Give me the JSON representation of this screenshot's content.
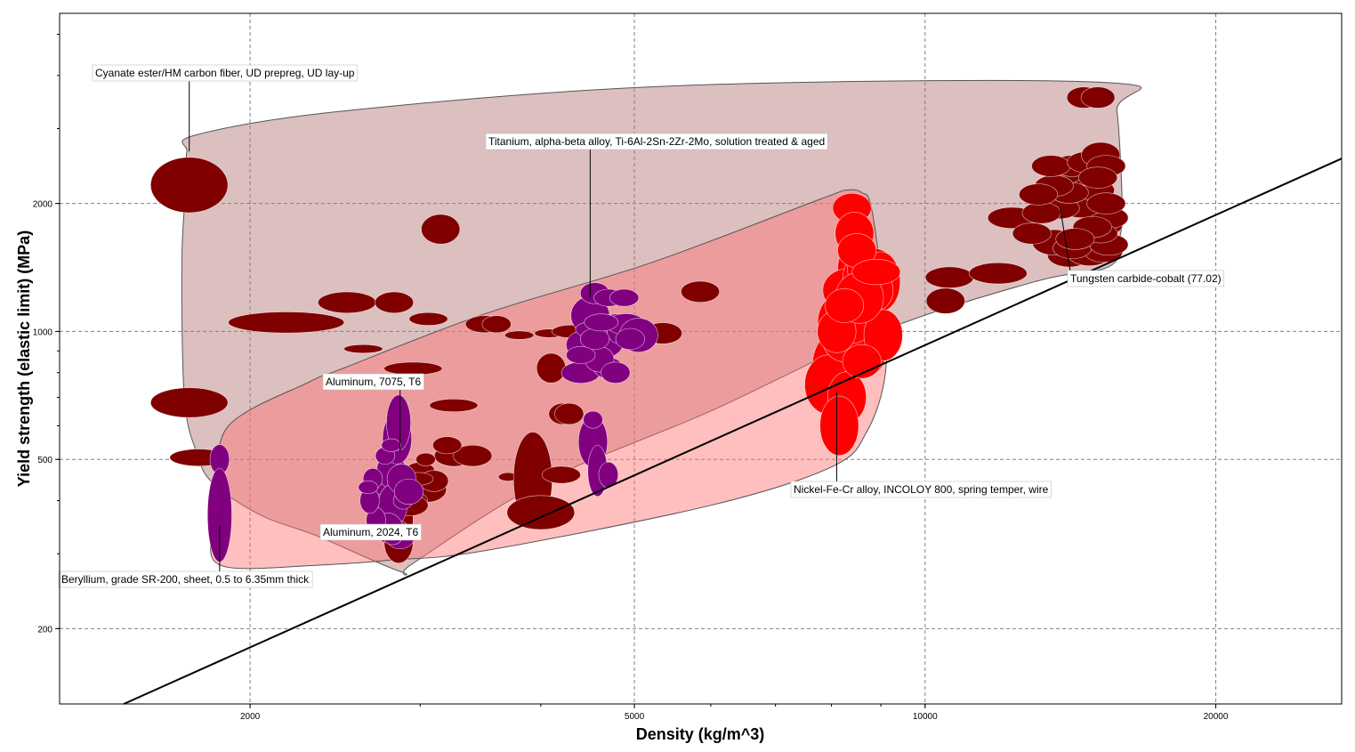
{
  "chart_data": {
    "type": "scatter",
    "title": "",
    "xlabel": "Density (kg/m^3)",
    "ylabel": "Yield strength (elastic limit) (MPa)",
    "xscale": "log",
    "yscale": "log",
    "xlim": [
      1270,
      27000
    ],
    "ylim": [
      133,
      5600
    ],
    "grid": true,
    "x_ticks": [
      {
        "value": 2000,
        "label": "2000"
      },
      {
        "value": 5000,
        "label": "5000"
      },
      {
        "value": 10000,
        "label": "10000"
      },
      {
        "value": 20000,
        "label": "20000"
      }
    ],
    "y_ticks": [
      {
        "value": 200,
        "label": "200"
      },
      {
        "value": 500,
        "label": "500"
      },
      {
        "value": 1000,
        "label": "1000"
      },
      {
        "value": 2000,
        "label": "2000"
      }
    ],
    "colors": {
      "all_materials": "#800000",
      "selected_a": "#800080",
      "selected_b": "#ff0000",
      "envelope_all": "#c08080",
      "envelope_red": "#ff8080",
      "line": "#000000",
      "grid": "#808080"
    },
    "envelopes": [
      {
        "color": "#b27272",
        "opacity": 0.45,
        "points": [
          [
            1720,
            2650
          ],
          [
            1720,
            2300
          ],
          [
            1700,
            1500
          ],
          [
            1710,
            700
          ],
          [
            1760,
            520
          ],
          [
            1830,
            440
          ],
          [
            2050,
            370
          ],
          [
            2350,
            330
          ],
          [
            2870,
            272
          ],
          [
            2950,
            285
          ],
          [
            4000,
            440
          ],
          [
            6000,
            650
          ],
          [
            9000,
            1000
          ],
          [
            13000,
            1310
          ],
          [
            15500,
            1420
          ],
          [
            15900,
            1650
          ],
          [
            16000,
            2000
          ],
          [
            15800,
            3300
          ],
          [
            15400,
            3850
          ],
          [
            5500,
            3780
          ],
          [
            2500,
            3300
          ],
          [
            1760,
            2900
          ]
        ]
      },
      {
        "color": "#ff7070",
        "opacity": 0.45,
        "points": [
          [
            1900,
            600
          ],
          [
            1850,
            430
          ],
          [
            1820,
            330
          ],
          [
            1880,
            280
          ],
          [
            2350,
            282
          ],
          [
            2800,
            290
          ],
          [
            3500,
            305
          ],
          [
            6000,
            390
          ],
          [
            8000,
            480
          ],
          [
            8700,
            580
          ],
          [
            9100,
            800
          ],
          [
            9050,
            1200
          ],
          [
            8800,
            1950
          ],
          [
            8600,
            2120
          ],
          [
            8300,
            2150
          ],
          [
            7800,
            2050
          ],
          [
            5200,
            1450
          ],
          [
            3500,
            1100
          ],
          [
            2500,
            820
          ],
          [
            2300,
            760
          ]
        ]
      }
    ],
    "series": [
      {
        "name": "",
        "color": "#800000",
        "points": [
          [
            1730,
            2210,
            0.08,
            0.13
          ],
          [
            1730,
            680,
            0.08,
            0.07
          ],
          [
            1770,
            505,
            0.06,
            0.04
          ],
          [
            2180,
            1050,
            0.12,
            0.05
          ],
          [
            2520,
            1170,
            0.06,
            0.05
          ],
          [
            2820,
            1170,
            0.04,
            0.05
          ],
          [
            2620,
            910,
            0.04,
            0.02
          ],
          [
            3150,
            1740,
            0.04,
            0.07
          ],
          [
            3060,
            1070,
            0.04,
            0.03
          ],
          [
            3500,
            1040,
            0.04,
            0.04
          ],
          [
            3600,
            1040,
            0.03,
            0.04
          ],
          [
            3800,
            980,
            0.03,
            0.02
          ],
          [
            4080,
            990,
            0.03,
            0.02
          ],
          [
            4300,
            1000,
            0.04,
            0.03
          ],
          [
            5350,
            990,
            0.04,
            0.05
          ],
          [
            5850,
            1240,
            0.04,
            0.05
          ],
          [
            2950,
            818,
            0.06,
            0.03
          ],
          [
            3250,
            670,
            0.05,
            0.03
          ],
          [
            3250,
            510,
            0.04,
            0.05
          ],
          [
            3400,
            510,
            0.04,
            0.05
          ],
          [
            3200,
            540,
            0.03,
            0.04
          ],
          [
            3700,
            455,
            0.02,
            0.02
          ],
          [
            3925,
            450,
            0.04,
            0.22
          ],
          [
            4000,
            375,
            0.07,
            0.08
          ],
          [
            4200,
            460,
            0.04,
            0.04
          ],
          [
            4220,
            640,
            0.03,
            0.05
          ],
          [
            4280,
            640,
            0.03,
            0.05
          ],
          [
            4100,
            820,
            0.03,
            0.07
          ],
          [
            3000,
            470,
            0.03,
            0.04
          ],
          [
            3050,
            425,
            0.04,
            0.06
          ],
          [
            3100,
            445,
            0.03,
            0.05
          ],
          [
            2990,
            450,
            0.03,
            0.03
          ],
          [
            3040,
            500,
            0.02,
            0.03
          ],
          [
            2950,
            400,
            0.03,
            0.04
          ],
          [
            2850,
            365,
            0.03,
            0.2
          ],
          [
            2850,
            320,
            0.03,
            0.1
          ],
          [
            2760,
            390,
            0.03,
            0.15
          ],
          [
            2920,
            390,
            0.04,
            0.05
          ],
          [
            10600,
            1340,
            0.05,
            0.05
          ],
          [
            10500,
            1180,
            0.04,
            0.06
          ],
          [
            11900,
            1370,
            0.06,
            0.05
          ],
          [
            12300,
            1850,
            0.05,
            0.05
          ],
          [
            14100,
            1510,
            0.045,
            0.055
          ],
          [
            14800,
            1520,
            0.045,
            0.055
          ],
          [
            15300,
            1540,
            0.04,
            0.05
          ],
          [
            13600,
            1620,
            0.045,
            0.06
          ],
          [
            14200,
            1570,
            0.04,
            0.05
          ],
          [
            15500,
            1600,
            0.04,
            0.05
          ],
          [
            15300,
            1780,
            0.04,
            0.05
          ],
          [
            15500,
            1850,
            0.04,
            0.05
          ],
          [
            15200,
            1700,
            0.035,
            0.045
          ],
          [
            14500,
            1960,
            0.04,
            0.05
          ],
          [
            15000,
            2150,
            0.04,
            0.05
          ],
          [
            14800,
            2330,
            0.04,
            0.05
          ],
          [
            13800,
            1950,
            0.04,
            0.05
          ],
          [
            14100,
            2120,
            0.04,
            0.05
          ],
          [
            13200,
            1900,
            0.04,
            0.05
          ],
          [
            13900,
            2350,
            0.04,
            0.05
          ],
          [
            14200,
            2450,
            0.04,
            0.05
          ],
          [
            13600,
            2200,
            0.04,
            0.05
          ],
          [
            13100,
            2100,
            0.04,
            0.05
          ],
          [
            13500,
            2450,
            0.04,
            0.05
          ],
          [
            14700,
            2500,
            0.04,
            0.05
          ],
          [
            15200,
            2600,
            0.04,
            0.06
          ],
          [
            15400,
            2450,
            0.04,
            0.05
          ],
          [
            15100,
            2300,
            0.04,
            0.05
          ],
          [
            15400,
            2000,
            0.04,
            0.05
          ],
          [
            14900,
            1760,
            0.04,
            0.05
          ],
          [
            14300,
            1650,
            0.04,
            0.05
          ],
          [
            14600,
            3550,
            0.035,
            0.05
          ],
          [
            15100,
            3550,
            0.035,
            0.05
          ],
          [
            12900,
            1700,
            0.04,
            0.05
          ]
        ]
      },
      {
        "name": "",
        "color": "#800080",
        "points": [
          [
            1860,
            500,
            0.02,
            0.07
          ],
          [
            1860,
            370,
            0.025,
            0.22
          ],
          [
            2730,
            420,
            0.025,
            0.06
          ],
          [
            2750,
            375,
            0.03,
            0.09
          ],
          [
            2800,
            470,
            0.03,
            0.08
          ],
          [
            2810,
            390,
            0.03,
            0.1
          ],
          [
            2840,
            560,
            0.03,
            0.12
          ],
          [
            2850,
            610,
            0.025,
            0.13
          ],
          [
            2870,
            450,
            0.03,
            0.07
          ],
          [
            2860,
            330,
            0.03,
            0.06
          ],
          [
            2780,
            345,
            0.03,
            0.07
          ],
          [
            2700,
            360,
            0.02,
            0.06
          ],
          [
            2660,
            400,
            0.02,
            0.06
          ],
          [
            2680,
            450,
            0.02,
            0.05
          ],
          [
            2810,
            330,
            0.02,
            0.04
          ],
          [
            2880,
            400,
            0.02,
            0.04
          ],
          [
            2920,
            420,
            0.03,
            0.06
          ],
          [
            2760,
            510,
            0.02,
            0.04
          ],
          [
            2650,
            430,
            0.02,
            0.03
          ],
          [
            2800,
            540,
            0.02,
            0.03
          ],
          [
            4500,
            1090,
            0.04,
            0.09
          ],
          [
            4450,
            930,
            0.04,
            0.07
          ],
          [
            4650,
            940,
            0.04,
            0.07
          ],
          [
            4550,
            1010,
            0.04,
            0.04
          ],
          [
            4400,
            800,
            0.04,
            0.05
          ],
          [
            4700,
            820,
            0.03,
            0.05
          ],
          [
            4850,
            1000,
            0.03,
            0.06
          ],
          [
            4600,
            860,
            0.03,
            0.06
          ],
          [
            4800,
            1050,
            0.03,
            0.04
          ],
          [
            4900,
            1040,
            0.04,
            0.05
          ],
          [
            5050,
            980,
            0.04,
            0.08
          ],
          [
            4950,
            960,
            0.03,
            0.05
          ],
          [
            4550,
            960,
            0.03,
            0.05
          ],
          [
            4550,
            1230,
            0.03,
            0.05
          ],
          [
            4700,
            1200,
            0.03,
            0.04
          ],
          [
            4880,
            1200,
            0.03,
            0.04
          ],
          [
            4400,
            880,
            0.03,
            0.04
          ],
          [
            4620,
            1050,
            0.035,
            0.04
          ],
          [
            4530,
            550,
            0.03,
            0.12
          ],
          [
            4580,
            470,
            0.02,
            0.12
          ],
          [
            4700,
            460,
            0.02,
            0.06
          ],
          [
            4530,
            620,
            0.02,
            0.04
          ],
          [
            4780,
            800,
            0.03,
            0.05
          ]
        ]
      },
      {
        "name": "",
        "color": "#ff0000",
        "points": [
          [
            8400,
            1950,
            0.04,
            0.07
          ],
          [
            8500,
            1400,
            0.04,
            0.13
          ],
          [
            8600,
            1050,
            0.04,
            0.12
          ],
          [
            8700,
            900,
            0.04,
            0.12
          ],
          [
            8200,
            1050,
            0.05,
            0.14
          ],
          [
            8150,
            850,
            0.05,
            0.16
          ],
          [
            8000,
            820,
            0.04,
            0.16
          ],
          [
            7950,
            750,
            0.05,
            0.14
          ],
          [
            8300,
            950,
            0.05,
            0.1
          ],
          [
            8400,
            1100,
            0.05,
            0.14
          ],
          [
            8300,
            1250,
            0.05,
            0.1
          ],
          [
            8100,
            1000,
            0.04,
            0.1
          ],
          [
            8300,
            700,
            0.04,
            0.12
          ],
          [
            8700,
            1320,
            0.05,
            0.14
          ],
          [
            8800,
            1400,
            0.05,
            0.1
          ],
          [
            9000,
            1310,
            0.04,
            0.14
          ],
          [
            8850,
            1250,
            0.04,
            0.1
          ],
          [
            8450,
            1700,
            0.04,
            0.1
          ],
          [
            8500,
            1550,
            0.04,
            0.08
          ],
          [
            9050,
            980,
            0.04,
            0.12
          ],
          [
            8600,
            850,
            0.04,
            0.08
          ],
          [
            8550,
            1200,
            0.05,
            0.12
          ],
          [
            8150,
            600,
            0.04,
            0.14
          ],
          [
            8900,
            1380,
            0.05,
            0.06
          ],
          [
            8250,
            1150,
            0.04,
            0.08
          ]
        ]
      }
    ],
    "reference_line": {
      "points": [
        [
          1480,
          133
        ],
        [
          27000,
          2550
        ]
      ]
    },
    "annotations": [
      {
        "text": "Cyanate ester/HM carbon fiber, UD prepreg, UD lay-up",
        "point": [
          1730,
          2650
        ],
        "anchor": "top-left"
      },
      {
        "text": "Titanium, alpha-beta alloy, Ti-6Al-2Sn-2Zr-2Mo, solution treated & aged",
        "point": [
          4500,
          1200
        ],
        "anchor": "top-center"
      },
      {
        "text": "Aluminum, 7075, T6",
        "point": [
          2860,
          520
        ],
        "anchor": "left"
      },
      {
        "text": "Aluminum, 2024, T6",
        "point": [
          2790,
          355
        ],
        "anchor": "left"
      },
      {
        "text": "Beryllium, grade SR-200, sheet, 0.5 to 6.35mm thick",
        "point": [
          1860,
          350
        ],
        "anchor": "bottom-left"
      },
      {
        "text": "Nickel-Fe-Cr alloy, INCOLOY 800, spring temper, wire",
        "point": [
          8100,
          720
        ],
        "anchor": "bottom"
      },
      {
        "text": "Tungsten carbide-cobalt (77.02)",
        "point": [
          13800,
          1960
        ],
        "anchor": "right"
      }
    ]
  }
}
